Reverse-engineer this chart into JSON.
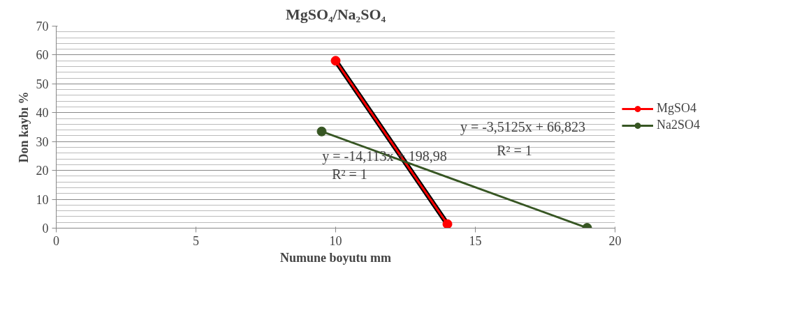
{
  "chart_data": {
    "type": "line",
    "title": "MgSO₄/Na₂SO₄",
    "xlabel": "Numune boyutu mm",
    "ylabel": "Don kaybı %",
    "xlim": [
      0,
      20
    ],
    "xticks": [
      0,
      5,
      10,
      15,
      20
    ],
    "ylim": [
      0,
      70
    ],
    "yticks": [
      0,
      10,
      20,
      30,
      40,
      50,
      60,
      70
    ],
    "grid": "y",
    "legend": "right",
    "marker": "circle",
    "line_style": "solid",
    "series": [
      {
        "name": "MgSO4",
        "color": "#ff0000",
        "x": [
          10,
          14
        ],
        "values": [
          58,
          1.4
        ]
      },
      {
        "name": "Na2SO4",
        "color": "#375623",
        "x": [
          9.5,
          19
        ],
        "values": [
          33.5,
          0.1
        ]
      },
      {
        "type": "line",
        "color": "#000000",
        "marker": "none",
        "x": [
          10,
          14
        ],
        "values": [
          58,
          1.4
        ]
      }
    ],
    "annotations": [
      "y = -14,113x + 198,98",
      "R² = 1",
      "y = -3,5125x + 66,823",
      "R² = 1"
    ]
  }
}
